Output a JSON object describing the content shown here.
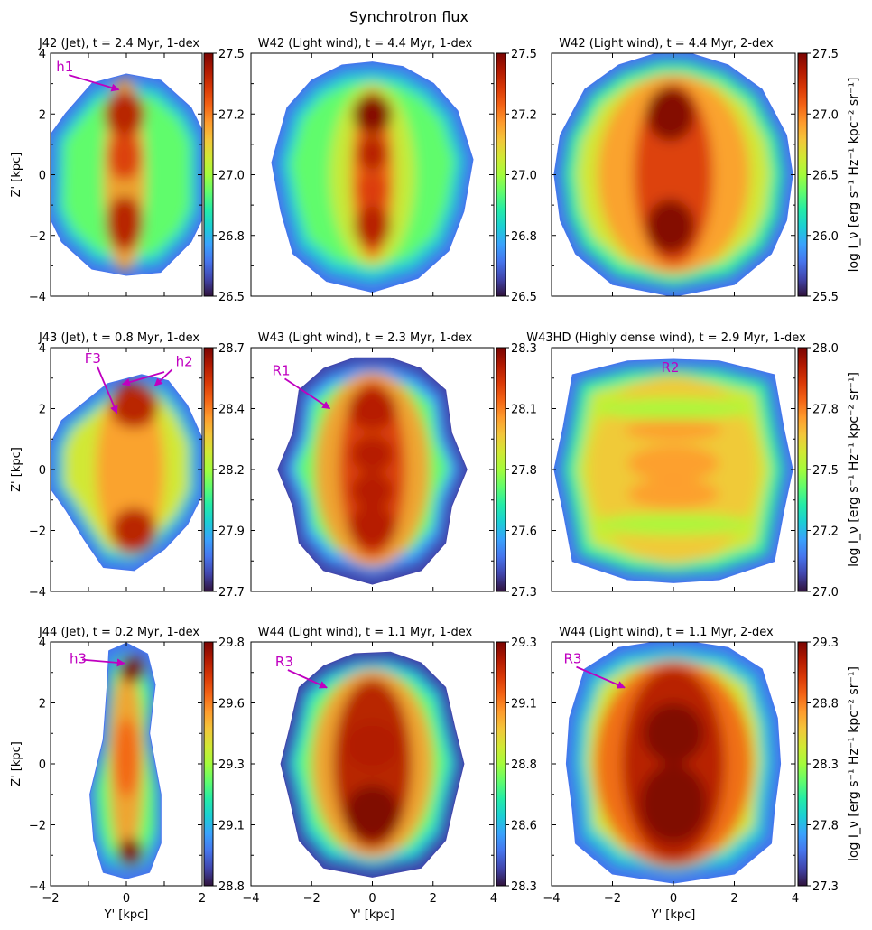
{
  "figure": {
    "title": "Synchrotron flux",
    "ylabel": "Z' [kpc]",
    "xlabel": "Y' [kpc]",
    "cbar_label": "log I_ν [erg s⁻¹ Hz⁻¹ kpc⁻² sr⁻¹]",
    "annotation_color": "#c000c0",
    "colormap": "turbo"
  },
  "chart_data": [
    {
      "type": "heatmap",
      "title": "J42 (Jet), t = 2.4 Myr, 1-dex",
      "xlim": [
        -2,
        2
      ],
      "ylim": [
        -4,
        4
      ],
      "yticks": [
        -4,
        -2,
        0,
        2,
        4
      ],
      "colorbar": {
        "range": [
          26.5,
          27.5
        ],
        "ticks": [
          "26.5",
          "26.8",
          "27.0",
          "27.2",
          "27.5"
        ]
      },
      "annotations": [
        {
          "label": "h1",
          "text_at": [
            -1.85,
            3.4
          ],
          "arrow_to": [
            -0.2,
            2.8
          ]
        }
      ]
    },
    {
      "type": "heatmap",
      "title": "W42 (Light wind), t = 4.4 Myr, 1-dex",
      "xlim": [
        -4,
        4
      ],
      "ylim": [
        -4,
        4
      ],
      "colorbar": {
        "range": [
          26.5,
          27.5
        ],
        "ticks": [
          "26.5",
          "26.8",
          "27.0",
          "27.2",
          "27.5"
        ]
      },
      "annotations": []
    },
    {
      "type": "heatmap",
      "title": "W42 (Light wind), t = 4.4 Myr, 2-dex",
      "xlim": [
        -4,
        4
      ],
      "ylim": [
        -4,
        4
      ],
      "colorbar": {
        "range": [
          25.5,
          27.5
        ],
        "ticks": [
          "25.5",
          "26.0",
          "26.5",
          "27.0",
          "27.5"
        ]
      },
      "annotations": []
    },
    {
      "type": "heatmap",
      "title": "J43 (Jet), t = 0.8 Myr, 1-dex",
      "xlim": [
        -2,
        2
      ],
      "ylim": [
        -4,
        4
      ],
      "yticks": [
        -4,
        -2,
        0,
        2,
        4
      ],
      "colorbar": {
        "range": [
          27.7,
          28.7
        ],
        "ticks": [
          "27.7",
          "27.9",
          "28.2",
          "28.4",
          "28.7"
        ]
      },
      "annotations": [
        {
          "label": "F3",
          "text_at": [
            -1.1,
            3.5
          ],
          "arrow_to": [
            -0.25,
            1.85
          ]
        },
        {
          "label": "h2",
          "text_at": [
            1.3,
            3.4
          ],
          "arrow_to": [
            0.75,
            2.75
          ]
        },
        {
          "label": "",
          "text_at": [
            1.0,
            3.2
          ],
          "arrow_to": [
            -0.1,
            2.8
          ]
        }
      ]
    },
    {
      "type": "heatmap",
      "title": "W43 (Light wind), t = 2.3 Myr, 1-dex",
      "xlim": [
        -4,
        4
      ],
      "ylim": [
        -4,
        4
      ],
      "colorbar": {
        "range": [
          27.3,
          28.3
        ],
        "ticks": [
          "27.3",
          "27.6",
          "27.8",
          "28.1",
          "28.3"
        ]
      },
      "annotations": [
        {
          "label": "R1",
          "text_at": [
            -3.3,
            3.1
          ],
          "arrow_to": [
            -1.4,
            2.0
          ]
        }
      ]
    },
    {
      "type": "heatmap",
      "title": "W43HD (Highly dense wind), t = 2.9 Myr, 1-dex",
      "xlim": [
        -4,
        4
      ],
      "ylim": [
        -4,
        4
      ],
      "colorbar": {
        "range": [
          27.0,
          28.0
        ],
        "ticks": [
          "27.0",
          "27.2",
          "27.5",
          "27.8",
          "28.0"
        ]
      },
      "annotations": [
        {
          "label": "R2",
          "text_at": [
            -0.4,
            3.2
          ],
          "arrow_to": null
        }
      ]
    },
    {
      "type": "heatmap",
      "title": "J44 (Jet), t = 0.2 Myr, 1-dex",
      "xlim": [
        -2,
        2
      ],
      "ylim": [
        -4,
        4
      ],
      "xticks": [
        -2,
        0,
        2
      ],
      "yticks": [
        -4,
        -2,
        0,
        2,
        4
      ],
      "colorbar": {
        "range": [
          28.8,
          29.8
        ],
        "ticks": [
          "28.8",
          "29.1",
          "29.3",
          "29.6",
          "29.8"
        ]
      },
      "annotations": [
        {
          "label": "h3",
          "text_at": [
            -1.5,
            3.3
          ],
          "arrow_to": [
            -0.05,
            3.3
          ]
        }
      ]
    },
    {
      "type": "heatmap",
      "title": "W44 (Light wind), t = 1.1 Myr, 1-dex",
      "xlim": [
        -4,
        4
      ],
      "ylim": [
        -4,
        4
      ],
      "xticks": [
        -4,
        -2,
        0,
        2,
        4
      ],
      "colorbar": {
        "range": [
          28.3,
          29.3
        ],
        "ticks": [
          "28.3",
          "28.6",
          "28.8",
          "29.1",
          "29.3"
        ]
      },
      "annotations": [
        {
          "label": "R3",
          "text_at": [
            -3.2,
            3.2
          ],
          "arrow_to": [
            -1.5,
            2.5
          ]
        }
      ]
    },
    {
      "type": "heatmap",
      "title": "W44 (Light wind), t = 1.1 Myr, 2-dex",
      "xlim": [
        -4,
        4
      ],
      "ylim": [
        -4,
        4
      ],
      "xticks": [
        -4,
        -2,
        0,
        2,
        4
      ],
      "colorbar": {
        "range": [
          27.3,
          29.3
        ],
        "ticks": [
          "27.3",
          "27.8",
          "28.3",
          "28.8",
          "29.3"
        ]
      },
      "annotations": [
        {
          "label": "R3",
          "text_at": [
            -3.6,
            3.3
          ],
          "arrow_to": [
            -1.6,
            2.5
          ]
        }
      ]
    }
  ]
}
